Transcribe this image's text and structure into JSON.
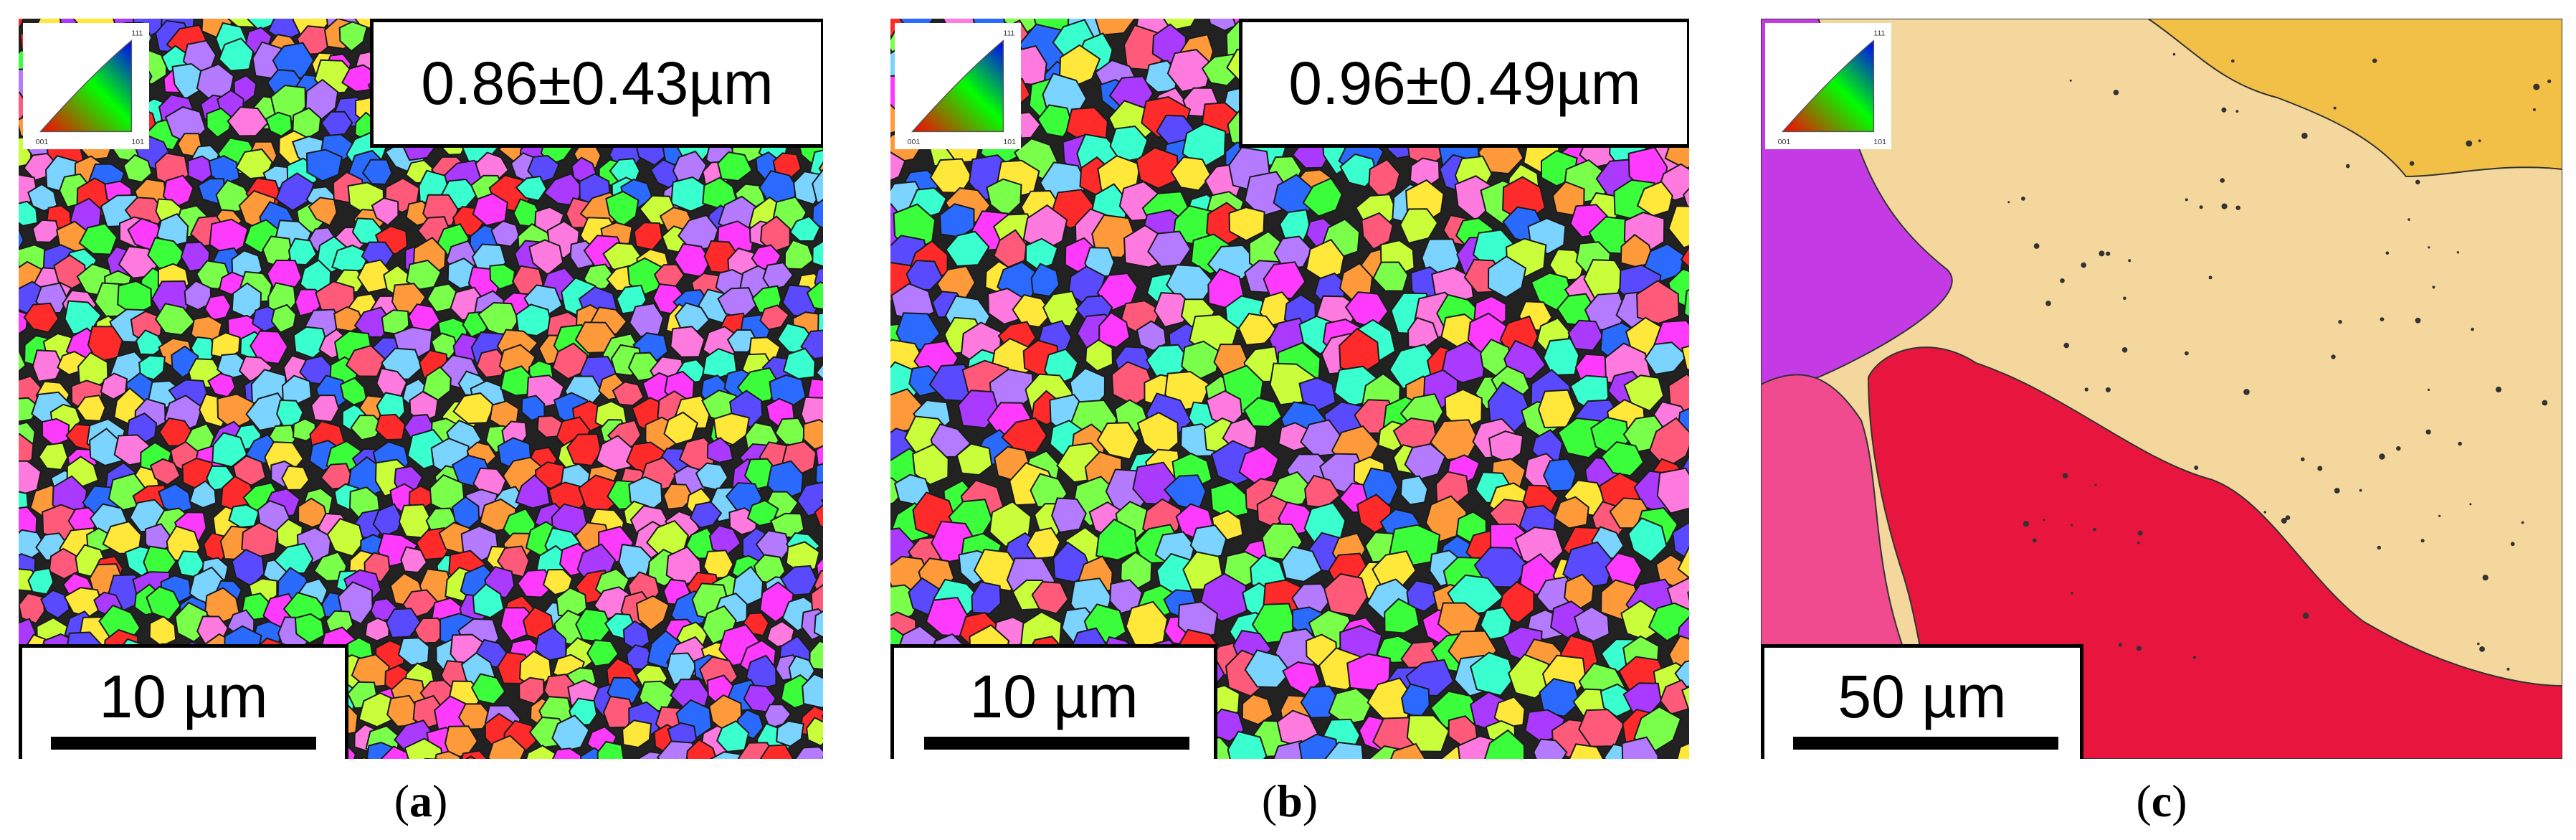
{
  "panels": [
    {
      "id": "a",
      "caption_open": "(",
      "caption_letter": "a",
      "caption_close": ")",
      "grain_size_label": "0.86±0.43µm",
      "scale_label": "10 µm"
    },
    {
      "id": "b",
      "caption_open": "(",
      "caption_letter": "b",
      "caption_close": ")",
      "grain_size_label": "0.96±0.49µm",
      "scale_label": "10 µm"
    },
    {
      "id": "c",
      "caption_open": "(",
      "caption_letter": "c",
      "caption_close": ")",
      "scale_label": "50 µm"
    }
  ],
  "ipf_legend": {
    "corner_labels": [
      "001",
      "101",
      "111"
    ],
    "colors": {
      "corner_001": "#ff0000",
      "corner_101": "#00ff00",
      "corner_111": "#0000ff"
    }
  },
  "map_colors": {
    "grain_palette": [
      "#ff2a2a",
      "#ff5a7a",
      "#3aff3a",
      "#7aff4a",
      "#2a6aff",
      "#5a4aff",
      "#aa3aff",
      "#ff3aff",
      "#3affcf",
      "#ffe83a",
      "#c8ff3a",
      "#ff9a3a",
      "#7ad4ff",
      "#ff7adf",
      "#b47aff"
    ],
    "c_left_magenta": "#c43be6",
    "c_pink": "#ef4b8e",
    "c_red": "#e8163f",
    "c_beige": "#f4d79c",
    "c_orange": "#f2bf47"
  }
}
